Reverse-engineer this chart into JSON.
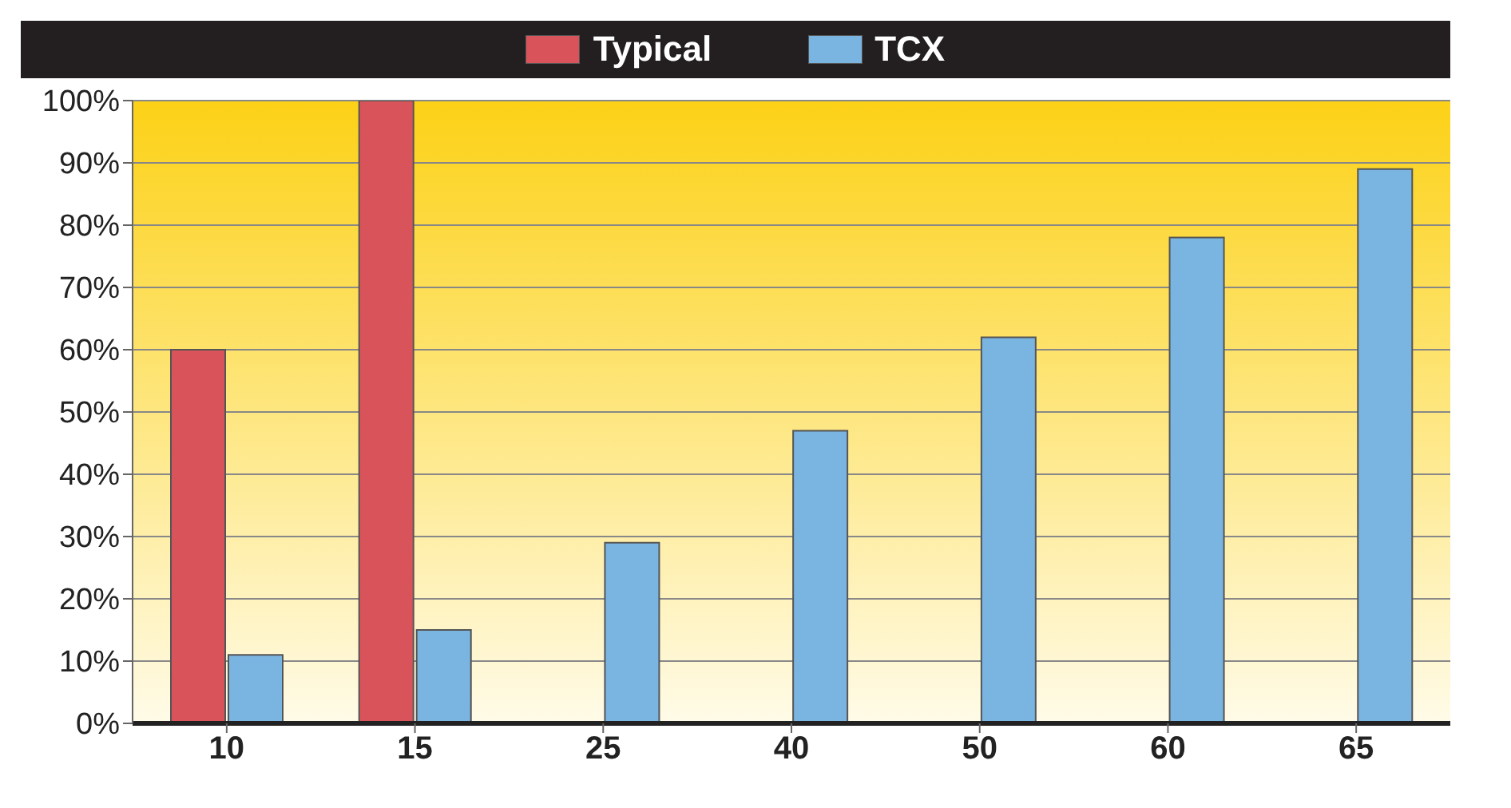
{
  "chart_data": {
    "type": "bar",
    "categories": [
      "10",
      "15",
      "25",
      "40",
      "50",
      "60",
      "65"
    ],
    "series": [
      {
        "name": "Typical",
        "color": "#d9545a",
        "values": [
          60,
          100,
          null,
          null,
          null,
          null,
          null
        ]
      },
      {
        "name": "TCX",
        "color": "#7ab4e0",
        "values": [
          11,
          15,
          29,
          47,
          62,
          78,
          89
        ]
      }
    ],
    "ylim": [
      0,
      100
    ],
    "yticks": [
      {
        "value": 0,
        "label": "0%"
      },
      {
        "value": 10,
        "label": "10%"
      },
      {
        "value": 20,
        "label": "20%"
      },
      {
        "value": 30,
        "label": "30%"
      },
      {
        "value": 40,
        "label": "40%"
      },
      {
        "value": 50,
        "label": "50%"
      },
      {
        "value": 60,
        "label": "60%"
      },
      {
        "value": 70,
        "label": "70%"
      },
      {
        "value": 80,
        "label": "80%"
      },
      {
        "value": 90,
        "label": "90%"
      },
      {
        "value": 100,
        "label": "100%"
      }
    ],
    "grid": "y",
    "legend": "top"
  }
}
